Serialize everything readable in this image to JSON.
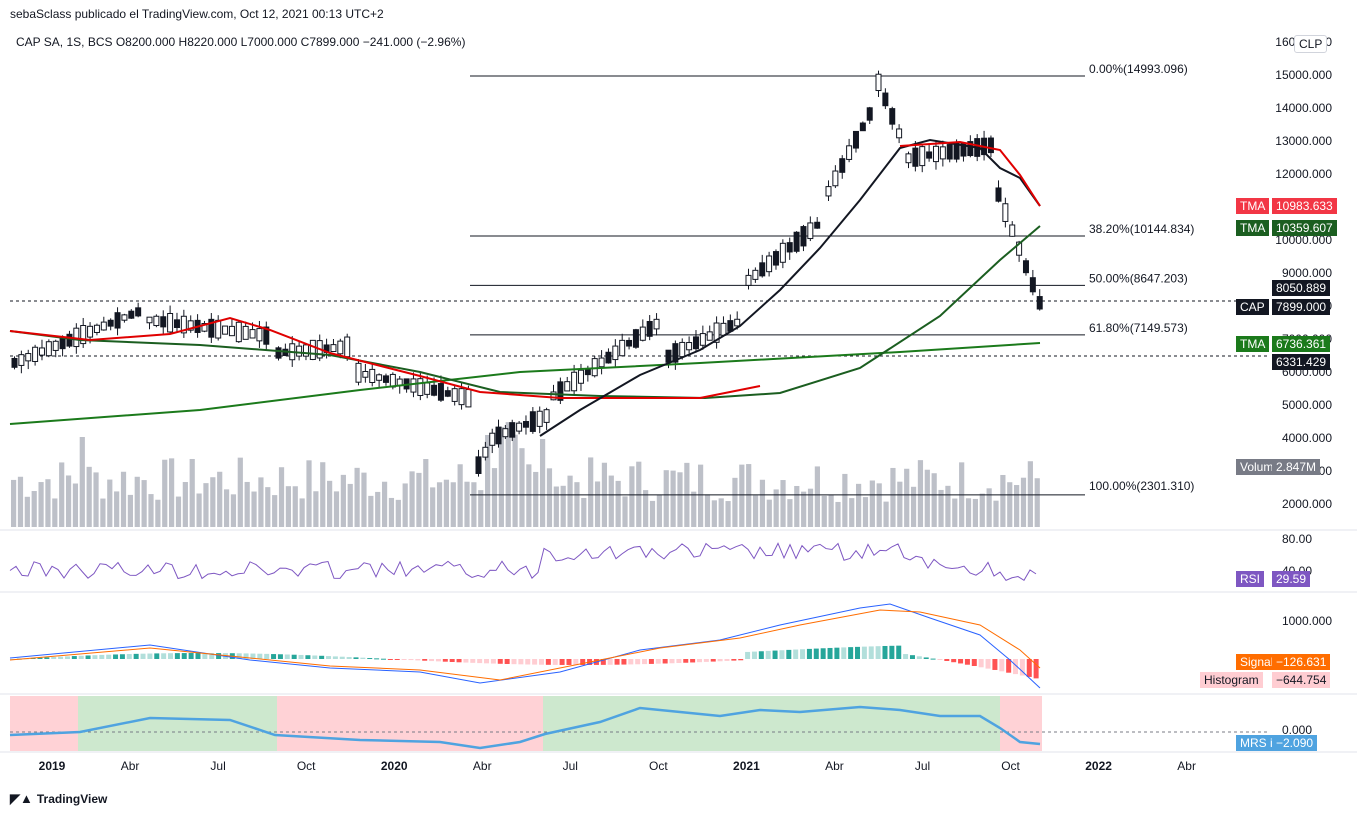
{
  "header": {
    "publisher": "sebaSclass publicado el TradingView.com, Oct 12, 2021 00:13 UTC+2",
    "legend": "CAP SA, 1S, BCS  O8200.000  H8220.000  L7000.000  C7899.000  −241.000 (−2.96%)",
    "currency": "CLP"
  },
  "price_axis": [
    "16000.000",
    "15000.000",
    "14000.000",
    "13000.000",
    "12000.000",
    "11000.000",
    "10000.000",
    "9000.000",
    "8000.000",
    "7000.000",
    "6000.000",
    "5000.000",
    "4000.000",
    "3000.000",
    "2000.000"
  ],
  "fib_levels": [
    {
      "label": "0.00%(14993.096)",
      "value": 14993.096
    },
    {
      "label": "38.20%(10144.834)",
      "value": 10144.834
    },
    {
      "label": "50.00%(8647.203)",
      "value": 8647.203
    },
    {
      "label": "61.80%(7149.573)",
      "value": 7149.573
    },
    {
      "label": "100.00%(2301.310)",
      "value": 2301.31
    }
  ],
  "markers": {
    "tma_red": {
      "label": "TMA",
      "value": "10983.633",
      "color": "#f23645"
    },
    "tma_green": {
      "label": "TMA",
      "value": "10359.607",
      "color": "#1b5e20"
    },
    "dotted_high": {
      "value": "8050.889"
    },
    "cap": {
      "label": "CAP",
      "value": "7899.000"
    },
    "tma_long": {
      "label": "TMA",
      "value": "6736.361",
      "color": "#1b7a1b"
    },
    "dotted_low": {
      "value": "6331.429"
    },
    "volume": {
      "label": "Volume",
      "value": "2.847M"
    }
  },
  "rsi": {
    "label": "RSI",
    "value": "29.59",
    "axis": [
      "80.00",
      "40.00"
    ],
    "color": "#7e57c2"
  },
  "macd": {
    "axis": [
      "1000.000"
    ],
    "signal_label": "Signal",
    "signal_value": "−126.631",
    "hist_label": "Histogram",
    "hist_value": "−644.754"
  },
  "mrs": {
    "label": "MRS index",
    "value": "−2.090",
    "axis": [
      "0.000"
    ]
  },
  "time_axis": [
    "2019",
    "Abr",
    "Jul",
    "Oct",
    "2020",
    "Abr",
    "Jul",
    "Oct",
    "2021",
    "Abr",
    "Jul",
    "Oct",
    "2022",
    "Abr"
  ],
  "footer": {
    "brand": "TradingView"
  }
}
